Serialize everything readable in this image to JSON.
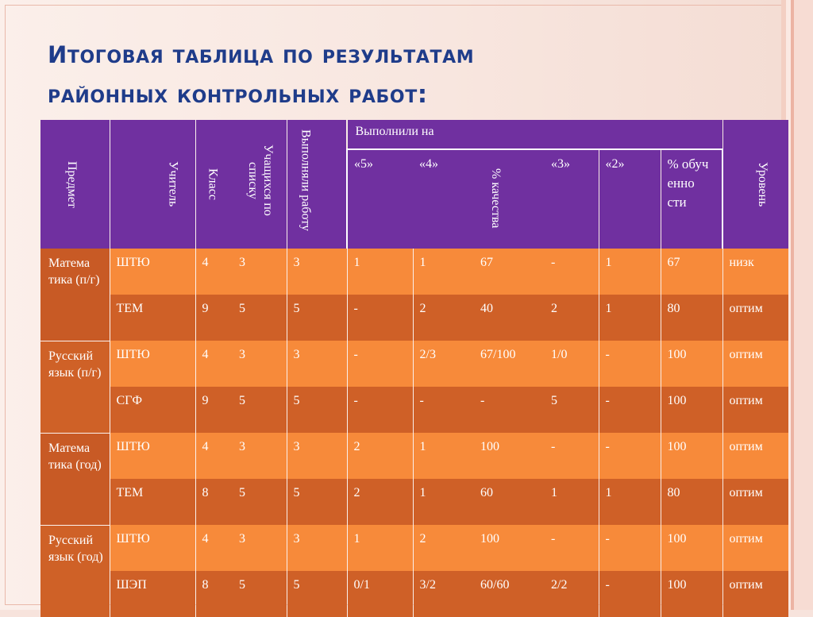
{
  "title": {
    "first_letter": "И",
    "rest": "тоговая таблица по результатам",
    "line2": "районных контрольных работ:"
  },
  "header": {
    "subject": "Предмет",
    "teacher": "Учитель",
    "class": "Класс",
    "students": "Учащихся по списку",
    "completed": "Выполняли работу",
    "completed_on": "Выполнили на",
    "grade5": "«5»",
    "grade4": "«4»",
    "quality": "% качества",
    "grade3": "«3»",
    "grade2": "«2»",
    "learning": "% обуч енно сти",
    "level": "Уровень"
  },
  "rows": [
    {
      "teacher": "ШТЮ",
      "class": "4",
      "students": "3",
      "done": "3",
      "g5": "1",
      "g4": "1",
      "quality": "67",
      "g3": "-",
      "g2": "1",
      "learning": "67",
      "level": "низк"
    },
    {
      "teacher": "ТЕМ",
      "class": "9",
      "students": "5",
      "done": "5",
      "g5": "-",
      "g4": "2",
      "quality": "40",
      "g3": "2",
      "g2": "1",
      "learning": "80",
      "level": "оптим"
    },
    {
      "teacher": "ШТЮ",
      "class": "4",
      "students": "3",
      "done": "3",
      "g5": "-",
      "g4": "2/3",
      "quality": "67/100",
      "g3": "1/0",
      "g2": "-",
      "learning": "100",
      "level": "оптим"
    },
    {
      "teacher": "СГФ",
      "class": "9",
      "students": "5",
      "done": "5",
      "g5": "-",
      "g4": "-",
      "quality": "-",
      "g3": "5",
      "g2": "-",
      "learning": "100",
      "level": "оптим"
    },
    {
      "teacher": "ШТЮ",
      "class": "4",
      "students": "3",
      "done": "3",
      "g5": "2",
      "g4": "1",
      "quality": "100",
      "g3": "-",
      "g2": "-",
      "learning": "100",
      "level": "оптим"
    },
    {
      "teacher": "ТЕМ",
      "class": "8",
      "students": "5",
      "done": "5",
      "g5": "2",
      "g4": "1",
      "quality": "60",
      "g3": "1",
      "g2": "1",
      "learning": "80",
      "level": "оптим"
    },
    {
      "teacher": "ШТЮ",
      "class": "4",
      "students": "3",
      "done": "3",
      "g5": "1",
      "g4": "2",
      "quality": "100",
      "g3": "-",
      "g2": "-",
      "learning": "100",
      "level": "оптим"
    },
    {
      "teacher": "ШЭП",
      "class": "8",
      "students": "5",
      "done": "5",
      "g5": "0/1",
      "g4": "3/2",
      "quality": "60/60",
      "g3": "2/2",
      "g2": "-",
      "learning": "100",
      "level": "оптим"
    }
  ],
  "subjects": [
    "Матема тика (п/г)",
    "Русский язык (п/г)",
    "Матема тика (год)",
    "Русский язык (год)"
  ]
}
